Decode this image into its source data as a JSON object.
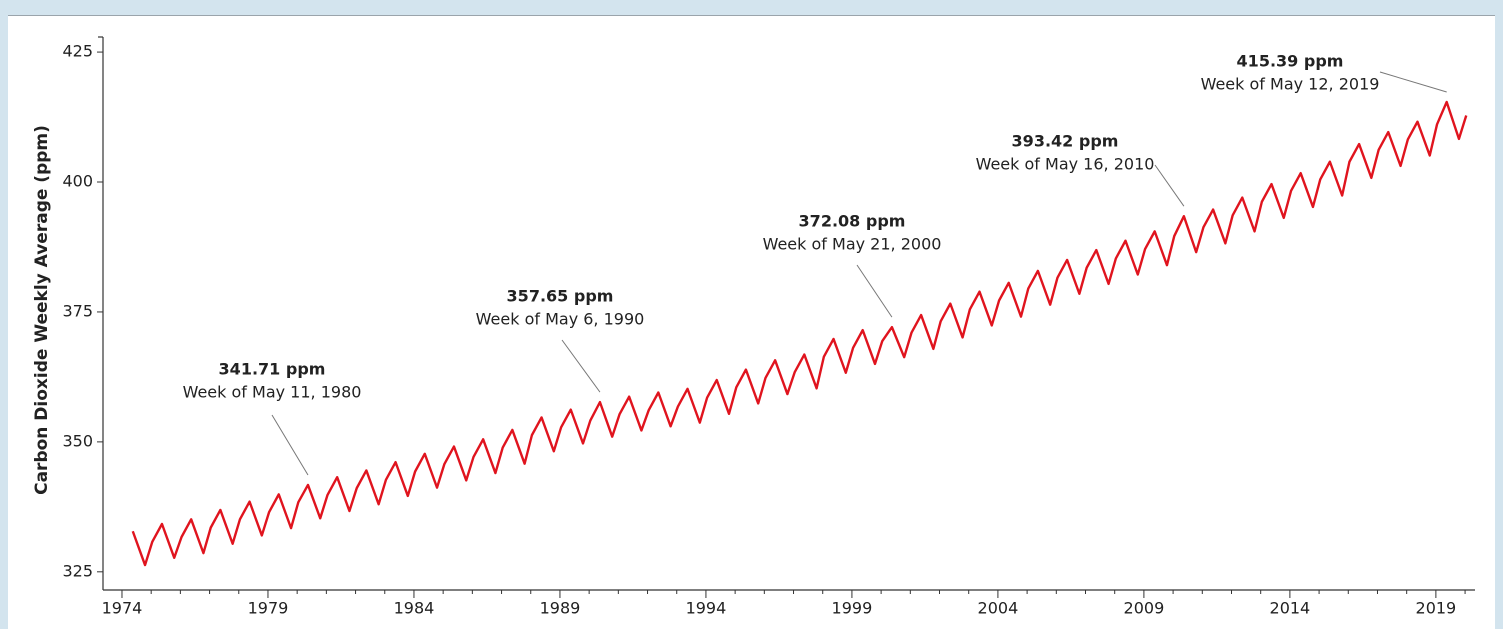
{
  "chart_data": {
    "type": "line",
    "ylabel": "Carbon Dioxide Weekly Average (ppm)",
    "xlim": [
      1973.35,
      2020.34
    ],
    "ylim": [
      321.5,
      427.9
    ],
    "xticks": [
      1974,
      1979,
      1984,
      1989,
      1994,
      1999,
      2004,
      2009,
      2014,
      2019
    ],
    "xminor_ticks": [
      1975,
      1976,
      1977,
      1978,
      1980,
      1981,
      1982,
      1983,
      1985,
      1986,
      1987,
      1988,
      1990,
      1991,
      1992,
      1993,
      1995,
      1996,
      1997,
      1998,
      2000,
      2001,
      2002,
      2003,
      2005,
      2006,
      2007,
      2008,
      2010,
      2011,
      2012,
      2013,
      2015,
      2016,
      2017,
      2018,
      2020
    ],
    "yticks": [
      325,
      350,
      375,
      400,
      425
    ],
    "x": [
      1974.37,
      1974.79,
      1975.04,
      1975.37,
      1975.79,
      1976.04,
      1976.37,
      1976.79,
      1977.04,
      1977.37,
      1977.79,
      1978.04,
      1978.37,
      1978.79,
      1979.04,
      1979.37,
      1979.79,
      1980.04,
      1980.37,
      1980.79,
      1981.04,
      1981.37,
      1981.79,
      1982.04,
      1982.37,
      1982.79,
      1983.04,
      1983.37,
      1983.79,
      1984.04,
      1984.37,
      1984.79,
      1985.04,
      1985.37,
      1985.79,
      1986.04,
      1986.37,
      1986.79,
      1987.04,
      1987.37,
      1987.79,
      1988.04,
      1988.37,
      1988.79,
      1989.04,
      1989.37,
      1989.79,
      1990.04,
      1990.37,
      1990.79,
      1991.04,
      1991.37,
      1991.79,
      1992.04,
      1992.37,
      1992.79,
      1993.04,
      1993.37,
      1993.79,
      1994.04,
      1994.37,
      1994.79,
      1995.04,
      1995.37,
      1995.79,
      1996.04,
      1996.37,
      1996.79,
      1997.04,
      1997.37,
      1997.79,
      1998.04,
      1998.37,
      1998.79,
      1999.04,
      1999.37,
      1999.79,
      2000.04,
      2000.37,
      2000.79,
      2001.04,
      2001.37,
      2001.79,
      2002.04,
      2002.37,
      2002.79,
      2003.04,
      2003.37,
      2003.79,
      2004.04,
      2004.37,
      2004.79,
      2005.04,
      2005.37,
      2005.79,
      2006.04,
      2006.37,
      2006.79,
      2007.04,
      2007.37,
      2007.79,
      2008.04,
      2008.37,
      2008.79,
      2009.04,
      2009.37,
      2009.79,
      2010.04,
      2010.37,
      2010.79,
      2011.04,
      2011.37,
      2011.79,
      2012.04,
      2012.37,
      2012.79,
      2013.04,
      2013.37,
      2013.79,
      2014.04,
      2014.37,
      2014.79,
      2015.04,
      2015.37,
      2015.79,
      2016.04,
      2016.37,
      2016.79,
      2017.04,
      2017.37,
      2017.79,
      2018.04,
      2018.37,
      2018.79,
      2019.04,
      2019.37,
      2019.79,
      2020.04
    ],
    "series": [
      {
        "color": "#e0141e",
        "values": [
          332.8,
          326.3,
          330.8,
          334.2,
          327.7,
          331.7,
          335.1,
          328.6,
          333.5,
          336.9,
          330.4,
          335.1,
          338.5,
          332.0,
          336.5,
          339.9,
          333.4,
          338.4,
          341.71,
          335.3,
          339.8,
          343.2,
          336.7,
          341.1,
          344.5,
          338.0,
          342.7,
          346.1,
          339.6,
          344.3,
          347.7,
          341.2,
          345.7,
          349.1,
          342.6,
          347.1,
          350.5,
          344.0,
          348.9,
          352.3,
          345.8,
          351.3,
          354.7,
          348.2,
          352.8,
          356.2,
          349.7,
          354.1,
          357.65,
          351.0,
          355.3,
          358.7,
          352.2,
          356.1,
          359.5,
          353.0,
          356.8,
          360.2,
          353.7,
          358.5,
          361.9,
          355.4,
          360.5,
          363.9,
          357.4,
          362.3,
          365.7,
          359.2,
          363.4,
          366.8,
          360.3,
          366.4,
          369.8,
          363.3,
          368.1,
          371.5,
          365.0,
          369.4,
          372.08,
          366.3,
          371.0,
          374.4,
          367.9,
          373.2,
          376.6,
          370.1,
          375.5,
          378.9,
          372.4,
          377.2,
          380.6,
          374.1,
          379.5,
          382.9,
          376.4,
          381.6,
          385.0,
          378.5,
          383.5,
          386.9,
          380.4,
          385.3,
          388.7,
          382.2,
          387.1,
          390.5,
          384.0,
          389.6,
          393.42,
          386.5,
          391.3,
          394.7,
          388.2,
          393.6,
          397.0,
          390.5,
          396.2,
          399.6,
          393.1,
          398.3,
          401.7,
          395.2,
          400.5,
          403.9,
          397.4,
          403.9,
          407.3,
          400.8,
          406.2,
          409.6,
          403.1,
          408.2,
          411.6,
          405.1,
          411.1,
          415.39,
          408.3,
          412.8
        ]
      }
    ],
    "annotations": [
      {
        "label": "341.71 ppm",
        "value": 341.71,
        "date": "Week of May 11, 1980",
        "x": 1980.37
      },
      {
        "label": "357.65 ppm",
        "value": 357.65,
        "date": "Week of May 6, 1990",
        "x": 1990.37
      },
      {
        "label": "372.08 ppm",
        "value": 372.08,
        "date": "Week of May 21, 2000",
        "x": 2000.37
      },
      {
        "label": "393.42 ppm",
        "value": 393.42,
        "date": "Week of May 16, 2010",
        "x": 2010.37
      },
      {
        "label": "415.39 ppm",
        "value": 415.39,
        "date": "Week of May 12, 2019",
        "x": 2019.37
      }
    ]
  }
}
